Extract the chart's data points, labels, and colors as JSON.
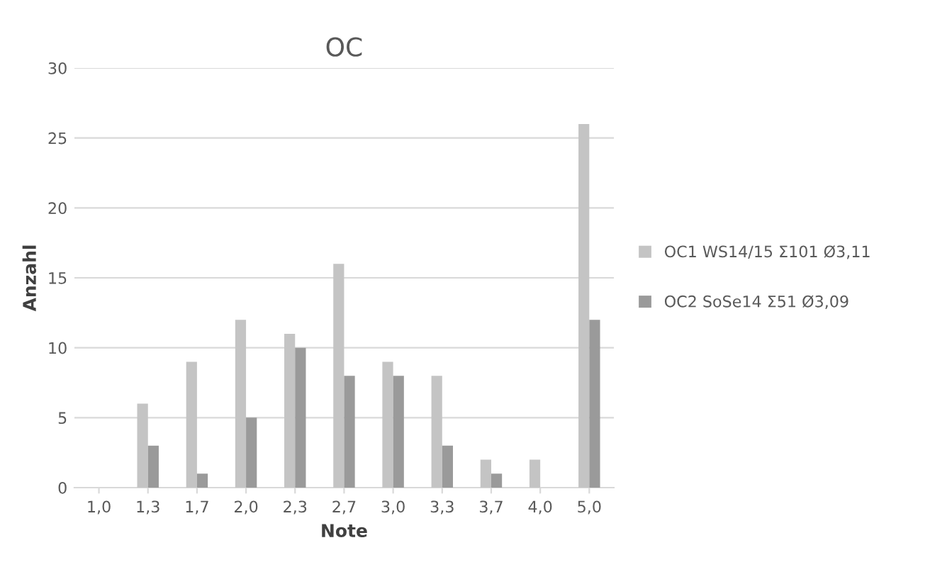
{
  "chart_data": {
    "type": "bar",
    "title": "OC",
    "xlabel": "Note",
    "ylabel": "Anzahl",
    "categories": [
      "1,0",
      "1,3",
      "1,7",
      "2,0",
      "2,3",
      "2,7",
      "3,0",
      "3,3",
      "3,7",
      "4,0",
      "5,0"
    ],
    "series": [
      {
        "name": "OC1 WS14/15 Σ101 Ø3,11",
        "color": "#c4c4c4",
        "values": [
          0,
          6,
          9,
          12,
          11,
          16,
          9,
          8,
          2,
          2,
          26
        ]
      },
      {
        "name": "OC2 SoSe14 Σ51 Ø3,09",
        "color": "#9a9a9a",
        "values": [
          0,
          3,
          1,
          5,
          10,
          8,
          8,
          3,
          1,
          0,
          12
        ]
      }
    ],
    "ylim": [
      0,
      30
    ],
    "yticks": [
      0,
      5,
      10,
      15,
      20,
      25,
      30
    ],
    "grid": "y",
    "legend": "right"
  }
}
